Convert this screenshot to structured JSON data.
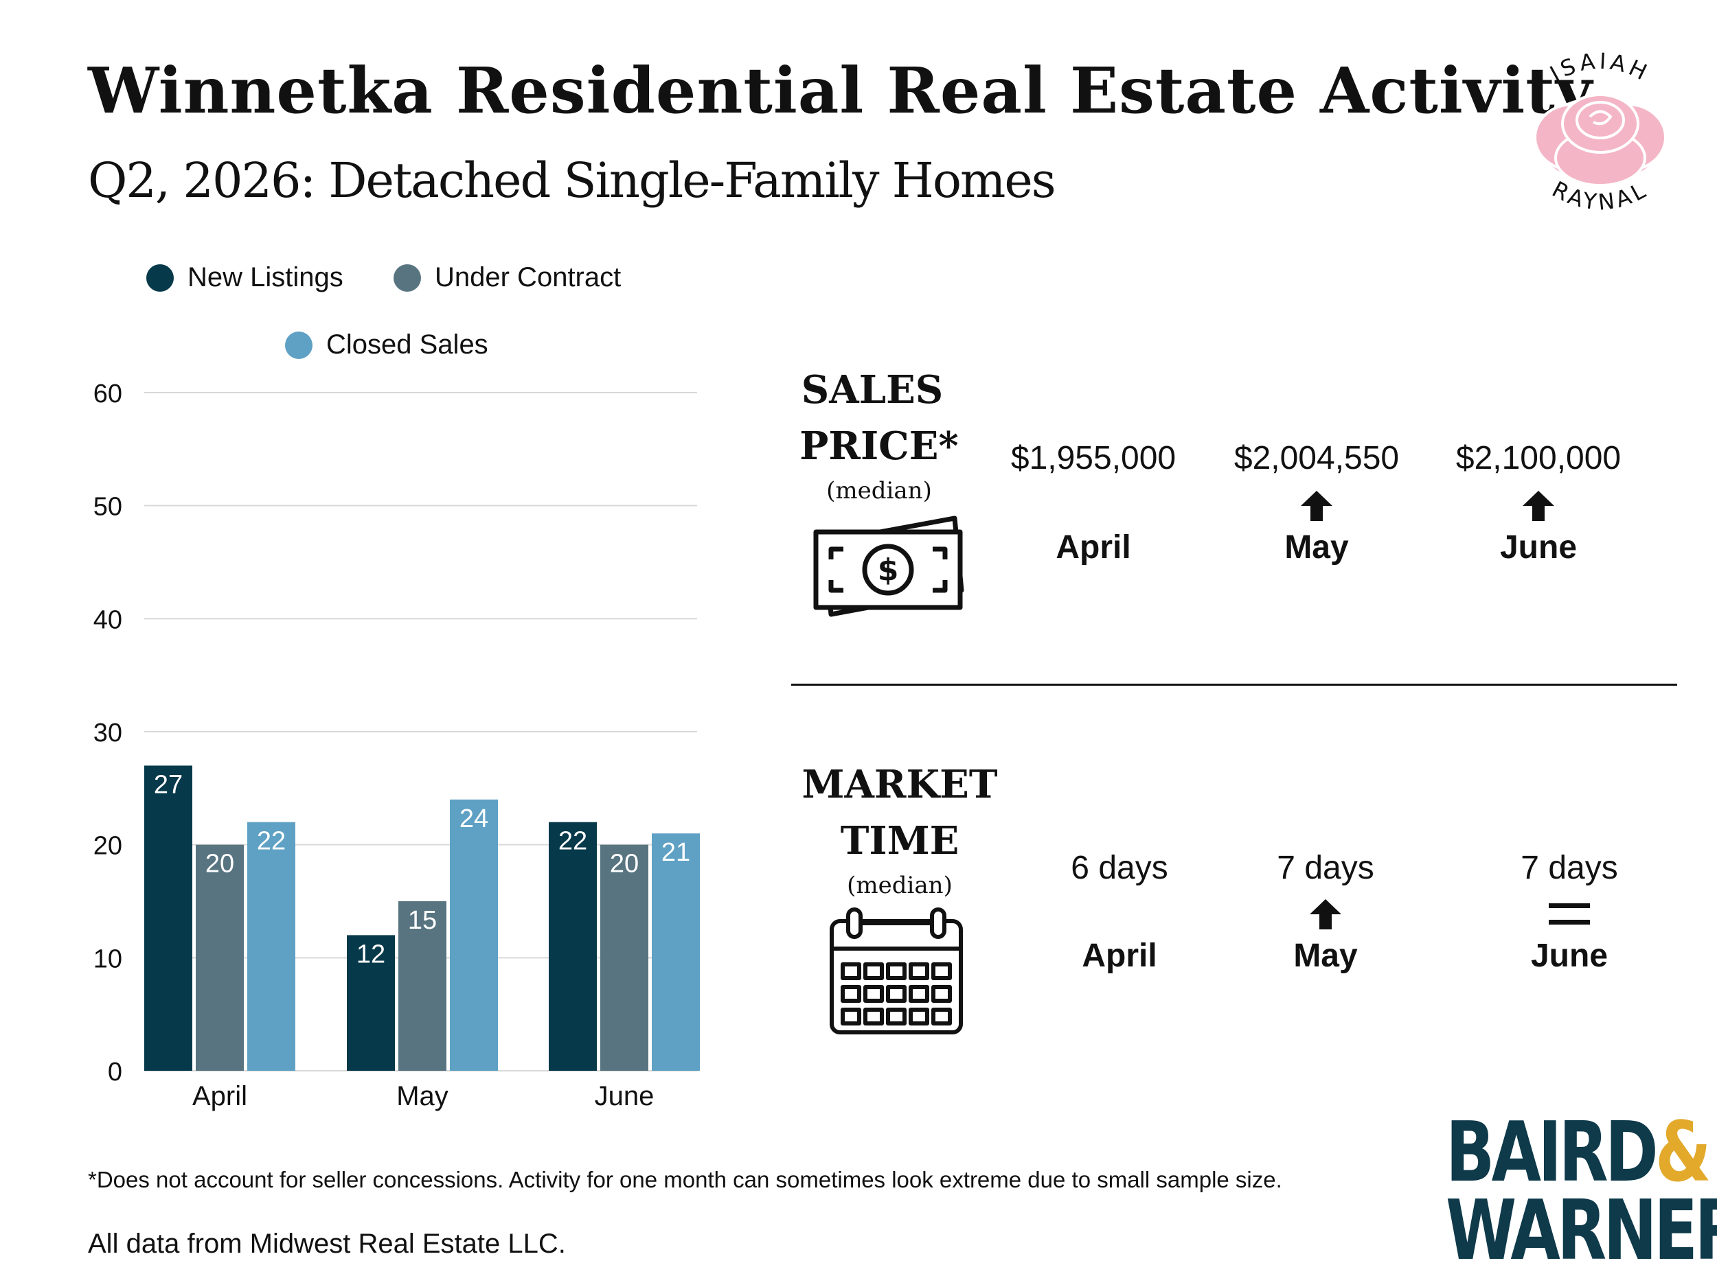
{
  "header": {
    "title": "Winnetka Residential Real Estate Activity",
    "subtitle": "Q2, 2026: Detached Single-Family Homes"
  },
  "logo": {
    "top_text": "ISAIAH",
    "bottom_text": "RAYNAL",
    "icon": "rose-icon",
    "color": "#f4b6c6"
  },
  "chart_data": {
    "type": "bar",
    "categories": [
      "April",
      "May",
      "June"
    ],
    "series": [
      {
        "name": "New Listings",
        "values": [
          27,
          12,
          22
        ],
        "color": "#06394a"
      },
      {
        "name": "Under Contract",
        "values": [
          20,
          15,
          20
        ],
        "color": "#587480"
      },
      {
        "name": "Closed Sales",
        "values": [
          22,
          24,
          21
        ],
        "color": "#5fa1c4"
      }
    ],
    "ylim": [
      0,
      60
    ],
    "yticks": [
      "0",
      "10",
      "20",
      "30",
      "40",
      "50",
      "60"
    ],
    "grid": true,
    "legend_position": "top"
  },
  "sales_price": {
    "title_line1": "SALES",
    "title_line2": "PRICE*",
    "note": "(median)",
    "icon": "money-icon",
    "items": [
      {
        "value": "$1,955,000",
        "month": "April",
        "trend": "none"
      },
      {
        "value": "$2,004,550",
        "month": "May",
        "trend": "up"
      },
      {
        "value": "$2,100,000",
        "month": "June",
        "trend": "up"
      }
    ]
  },
  "market_time": {
    "title_line1": "MARKET",
    "title_line2": "TIME",
    "note": "(median)",
    "icon": "calendar-icon",
    "items": [
      {
        "value": "6 days",
        "month": "April",
        "trend": "none"
      },
      {
        "value": "7 days",
        "month": "May",
        "trend": "up"
      },
      {
        "value": "7 days",
        "month": "June",
        "trend": "equal"
      }
    ]
  },
  "footer": {
    "footnote": "*Does not account for seller concessions. Activity for one month can sometimes look extreme due to small sample size.",
    "source": "All data from Midwest Real Estate LLC.",
    "brand_line1": "BAIRD",
    "brand_amp": "&",
    "brand_line2": "WARNER",
    "brand_color": "#0e3a4a",
    "amp_color": "#e2a92b"
  }
}
